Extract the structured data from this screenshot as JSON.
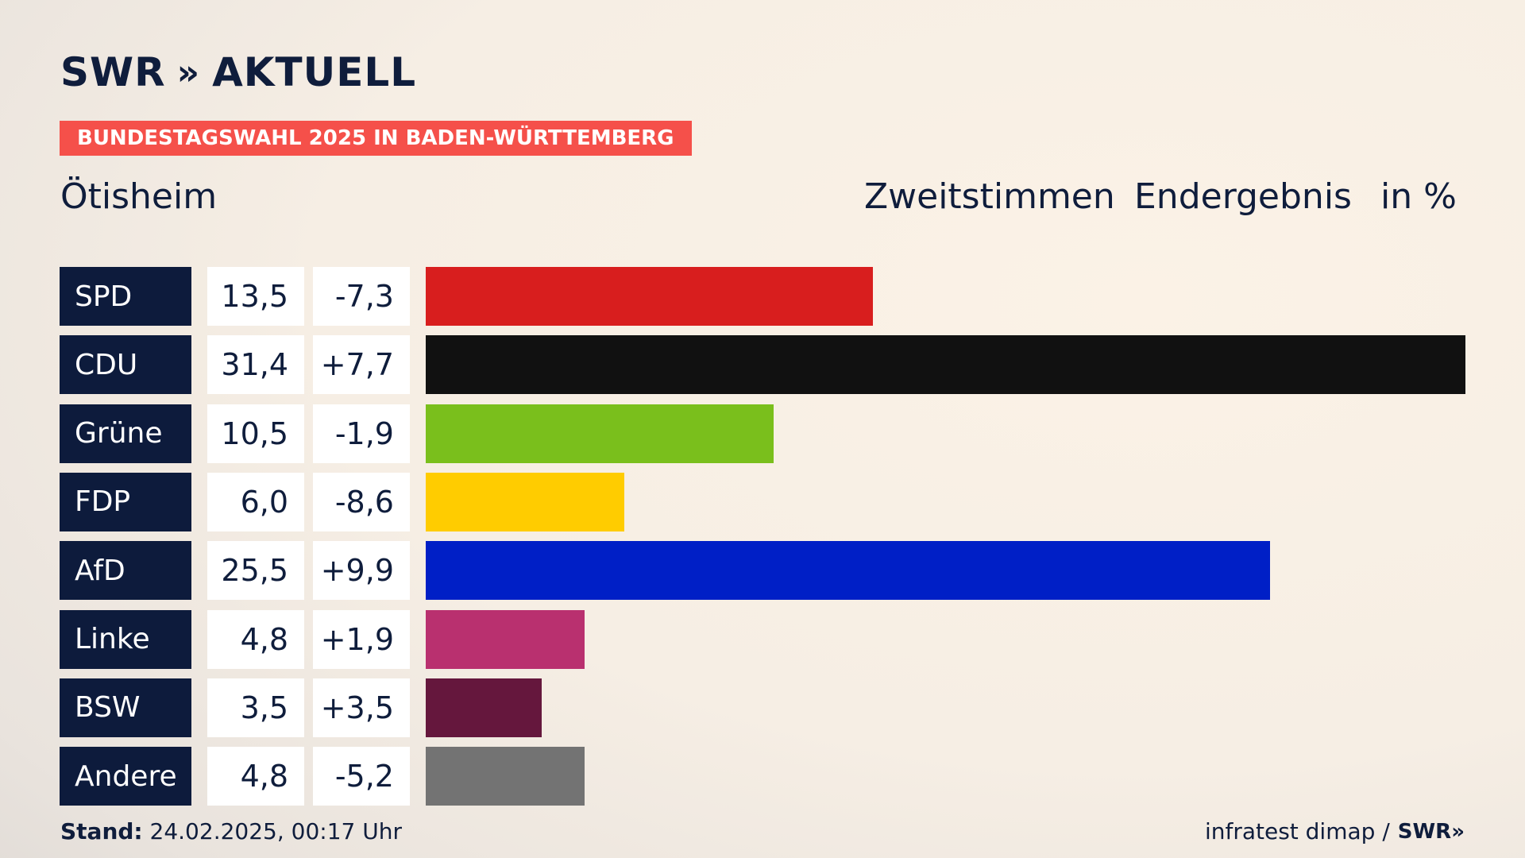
{
  "brand": {
    "logo_text": "SWR",
    "logo_chevrons": "»",
    "logo_suffix": "AKTUELL"
  },
  "banner": "BUNDESTAGSWAHL 2025 IN BADEN-WÜRTTEMBERG",
  "place": "Ötisheim",
  "header": {
    "metric": "Zweitstimmen",
    "status": "Endergebnis",
    "unit": "in %"
  },
  "chart_data": {
    "type": "bar",
    "categories": [
      "SPD",
      "CDU",
      "Grüne",
      "FDP",
      "AfD",
      "Linke",
      "BSW",
      "Andere"
    ],
    "values": [
      13.5,
      31.4,
      10.5,
      6.0,
      25.5,
      4.8,
      3.5,
      4.8
    ],
    "value_labels": [
      "13,5",
      "31,4",
      "10,5",
      "6,0",
      "25,5",
      "4,8",
      "3,5",
      "4,8"
    ],
    "diff_labels": [
      "-7,3",
      "+7,7",
      "-1,9",
      "-8,6",
      "+9,9",
      "+1,9",
      "+3,5",
      "-5,2"
    ],
    "colors": [
      "#d81e1e",
      "#111111",
      "#7abf1c",
      "#ffcc00",
      "#001fc6",
      "#b9306f",
      "#65173d",
      "#737373"
    ]
  },
  "footer": {
    "stand_label": "Stand:",
    "stand_value": "24.02.2025, 00:17 Uhr",
    "source": "infratest dimap /",
    "source_logo": "SWR»"
  }
}
